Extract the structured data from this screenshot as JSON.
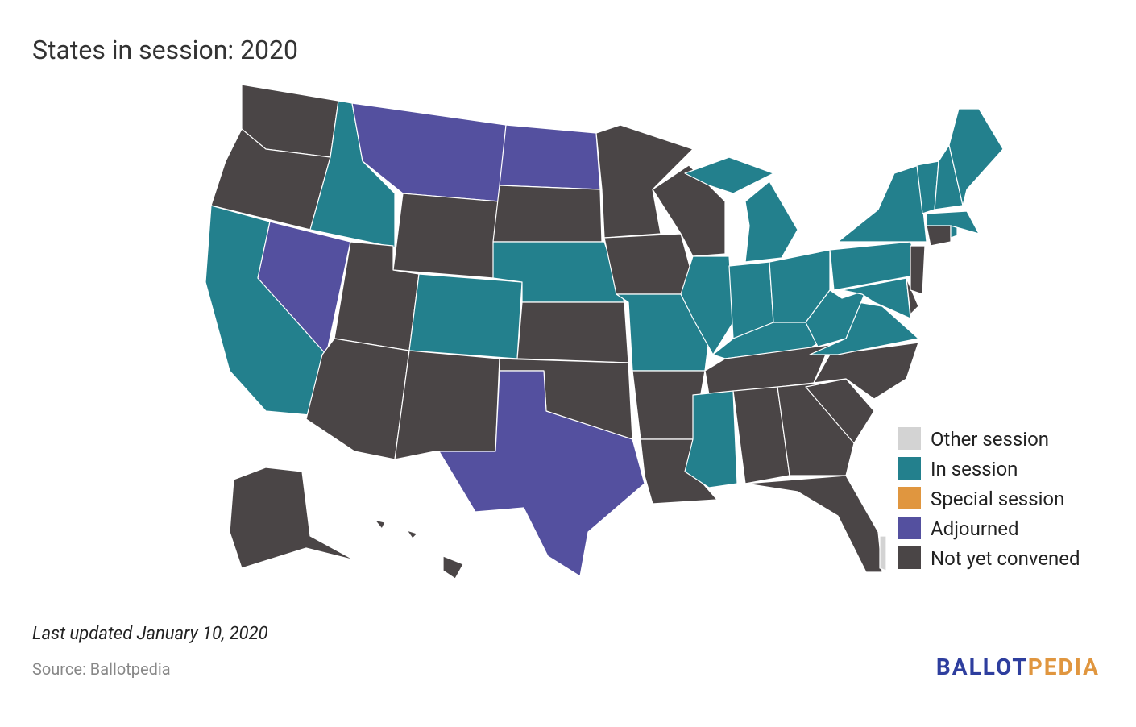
{
  "title": "States in session: 2020",
  "legend": [
    {
      "label": "Other session",
      "color": "#d3d3d3"
    },
    {
      "label": "In session",
      "color": "#23808d"
    },
    {
      "label": "Special session",
      "color": "#e0963f"
    },
    {
      "label": "Adjourned",
      "color": "#54509f"
    },
    {
      "label": "Not yet convened",
      "color": "#4a4546"
    }
  ],
  "regions": [
    "#4a4546",
    "#4a4546",
    "#23808d",
    "#54509f",
    "#23808d",
    "#54509f",
    "#4a4546",
    "#4a4546",
    "#4a4546",
    "#23808d",
    "#4a4546",
    "#54509f",
    "#4a4546",
    "#23808d",
    "#4a4546",
    "#4a4546",
    "#54509f",
    "#4a4546",
    "#4a4546",
    "#23808d",
    "#4a4546",
    "#4a4546",
    "#4a4546",
    "#23808d",
    "#23808d",
    "#23808d",
    "#23808d",
    "#23808d",
    "#4a4546",
    "#23808d",
    "#4a4546",
    "#4a4546",
    "#4a4546",
    "#4a4546",
    "#4a4546",
    "#23808d",
    "#23808d",
    "#23808d",
    "#23808d",
    "#23808d",
    "#4a4546",
    "#4a4546",
    "#4a4546",
    "#23808d",
    "#23808d",
    "#23808d",
    "#23808d",
    "#23808d",
    "#4a4546",
    "#4a4546",
    "#d3d3d3"
  ],
  "updated": "Last updated January 10, 2020",
  "source": "Source: Ballotpedia",
  "logo": [
    "BALLOT",
    "PEDIA"
  ]
}
